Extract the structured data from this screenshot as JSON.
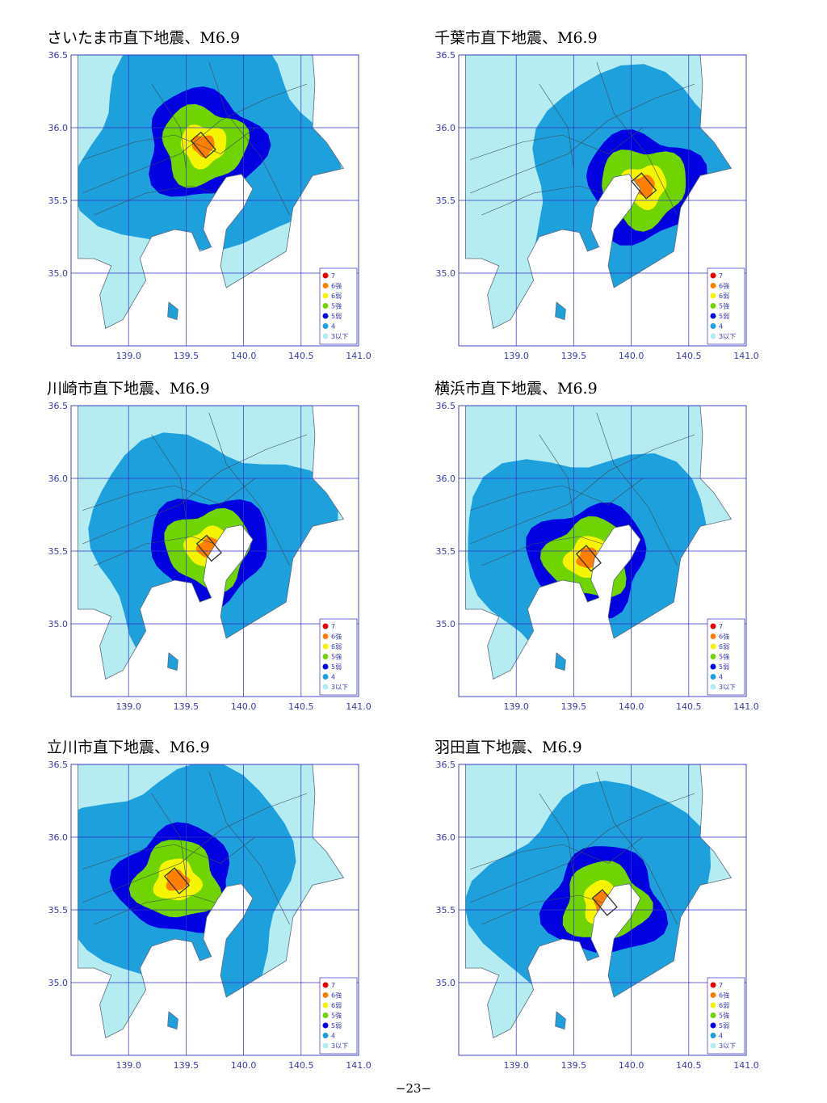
{
  "page_number": "−23−",
  "colors": {
    "i7": "#e60000",
    "i6u": "#ff7f00",
    "i6l": "#f5f500",
    "i5u": "#6fd400",
    "i5l": "#0000e0",
    "i4": "#1ea0dc",
    "i3": "#b4ecf2",
    "grid": "#3030c0",
    "border": "#404040"
  },
  "legend": [
    "7",
    "6強",
    "6弱",
    "5強",
    "5弱",
    "4",
    "3以下"
  ],
  "axes": {
    "x_ticks": [
      "139.0",
      "139.5",
      "140.0",
      "140.5",
      "141.0"
    ],
    "y_ticks": [
      "36.5",
      "36.0",
      "35.5",
      "35.0"
    ]
  },
  "maps": [
    {
      "title": "さいたま市直下地震、M6.9",
      "epicenter": [
        139.65,
        35.88
      ],
      "rot": 40
    },
    {
      "title": "千葉市直下地震、M6.9",
      "epicenter": [
        140.11,
        35.6
      ],
      "rot": 40
    },
    {
      "title": "川崎市直下地震、M6.9",
      "epicenter": [
        139.7,
        35.52
      ],
      "rot": 40
    },
    {
      "title": "横浜市直下地震、M6.9",
      "epicenter": [
        139.63,
        35.45
      ],
      "rot": 40
    },
    {
      "title": "立川市直下地震、M6.9",
      "epicenter": [
        139.42,
        35.7
      ],
      "rot": 40
    },
    {
      "title": "羽田直下地震、M6.9",
      "epicenter": [
        139.77,
        35.55
      ],
      "rot": 40
    }
  ]
}
